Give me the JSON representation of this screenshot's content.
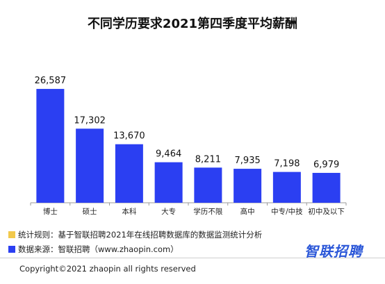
{
  "chart_data": {
    "type": "bar",
    "title": "不同学历要求2021第四季度平均薪酬",
    "categories": [
      "博士",
      "硕士",
      "本科",
      "大专",
      "学历不限",
      "高中",
      "中专/中技",
      "初中及以下"
    ],
    "values": [
      26587,
      17302,
      13670,
      9464,
      8211,
      7935,
      7198,
      6979
    ],
    "value_labels": [
      "26,587",
      "17,302",
      "13,670",
      "9,464",
      "8,211",
      "7,935",
      "7,198",
      "6,979"
    ],
    "ylim": [
      0,
      30000
    ],
    "bar_color": "#2b3ff2",
    "grid": false,
    "y_axis_visible": false
  },
  "footnotes": {
    "rule": {
      "text": "统计规则：基于智联招聘2021年在线招聘数据库的数据监测统计分析",
      "color": "#f2c94c"
    },
    "source": {
      "text": "数据来源：智联招聘（www.zhaopin.com）",
      "color": "#2b3ff2"
    }
  },
  "brand": {
    "name": "智联招聘",
    "color": "#2b57d8"
  },
  "copyright": "Copyright©2021 zhaopin all rights reserved"
}
